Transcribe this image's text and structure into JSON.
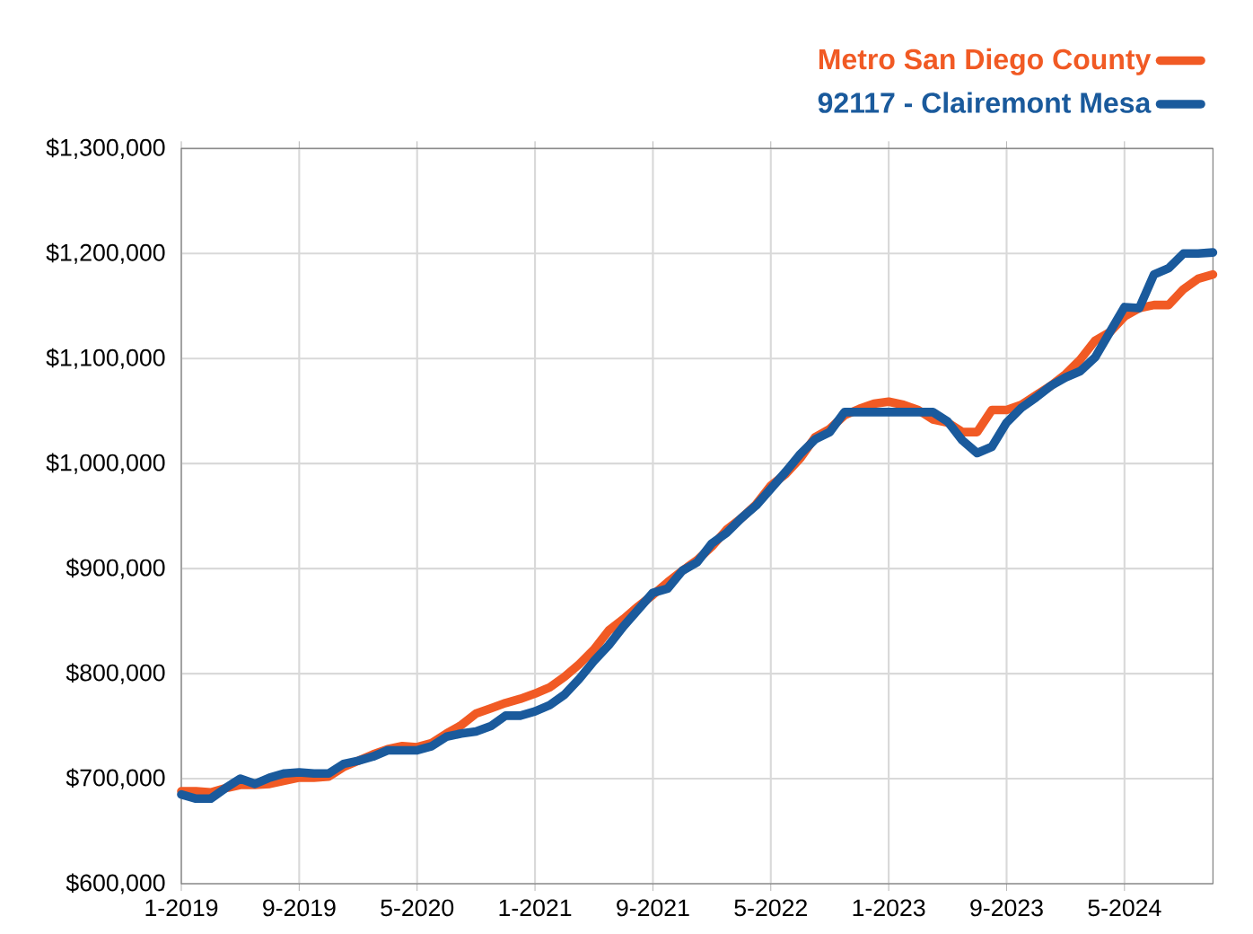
{
  "chart_data": {
    "type": "line",
    "x": [
      "2019-01",
      "2019-02",
      "2019-03",
      "2019-04",
      "2019-05",
      "2019-06",
      "2019-07",
      "2019-08",
      "2019-09",
      "2019-10",
      "2019-11",
      "2019-12",
      "2020-01",
      "2020-02",
      "2020-03",
      "2020-04",
      "2020-05",
      "2020-06",
      "2020-07",
      "2020-08",
      "2020-09",
      "2020-10",
      "2020-11",
      "2020-12",
      "2021-01",
      "2021-02",
      "2021-03",
      "2021-04",
      "2021-05",
      "2021-06",
      "2021-07",
      "2021-08",
      "2021-09",
      "2021-10",
      "2021-11",
      "2021-12",
      "2022-01",
      "2022-02",
      "2022-03",
      "2022-04",
      "2022-05",
      "2022-06",
      "2022-07",
      "2022-08",
      "2022-09",
      "2022-10",
      "2022-11",
      "2022-12",
      "2023-01",
      "2023-02",
      "2023-03",
      "2023-04",
      "2023-05",
      "2023-06",
      "2023-07",
      "2023-08",
      "2023-09",
      "2023-10",
      "2023-11",
      "2023-12",
      "2024-01",
      "2024-02",
      "2024-03",
      "2024-04",
      "2024-05",
      "2024-06",
      "2024-07",
      "2024-08",
      "2024-09",
      "2024-10",
      "2024-11"
    ],
    "series": [
      {
        "name": "Metro San Diego County",
        "color": "#f15a24",
        "values": [
          688000,
          688000,
          687000,
          691000,
          694000,
          694000,
          695000,
          698000,
          701000,
          701000,
          702000,
          711000,
          717000,
          723000,
          728000,
          731000,
          730000,
          734000,
          743000,
          751000,
          762000,
          767000,
          772000,
          776000,
          781000,
          787000,
          797000,
          809000,
          823000,
          841000,
          852000,
          864000,
          875000,
          887000,
          898000,
          908000,
          921000,
          937000,
          948000,
          961000,
          979000,
          990000,
          1005000,
          1025000,
          1033000,
          1046000,
          1052000,
          1057000,
          1059000,
          1056000,
          1051000,
          1042000,
          1039000,
          1030000,
          1030000,
          1051000,
          1051000,
          1056000,
          1065000,
          1074000,
          1085000,
          1099000,
          1117000,
          1125000,
          1140000,
          1148000,
          1151000,
          1151000,
          1166000,
          1176000,
          1180000
        ]
      },
      {
        "name": "92117 - Clairemont Mesa",
        "color": "#1a5a9c",
        "values": [
          685000,
          681000,
          681000,
          691000,
          700000,
          695000,
          701000,
          705000,
          706000,
          705000,
          705000,
          714000,
          717000,
          721000,
          727000,
          727000,
          727000,
          731000,
          740000,
          743000,
          745000,
          750000,
          760000,
          760000,
          764000,
          770000,
          780000,
          795000,
          812000,
          827000,
          845000,
          861000,
          877000,
          881000,
          898000,
          906000,
          924000,
          934000,
          948000,
          960000,
          976000,
          992000,
          1009000,
          1023000,
          1030000,
          1049000,
          1049000,
          1049000,
          1049000,
          1049000,
          1049000,
          1049000,
          1040000,
          1022000,
          1010000,
          1016000,
          1039000,
          1053000,
          1063000,
          1074000,
          1082000,
          1088000,
          1101000,
          1125000,
          1149000,
          1148000,
          1180000,
          1186000,
          1200000,
          1200000,
          1201000
        ]
      }
    ],
    "xlim": [
      "2019-01",
      "2024-11"
    ],
    "xticks": [
      {
        "value": "2019-01",
        "label": "1-2019"
      },
      {
        "value": "2019-09",
        "label": "9-2019"
      },
      {
        "value": "2020-05",
        "label": "5-2020"
      },
      {
        "value": "2021-01",
        "label": "1-2021"
      },
      {
        "value": "2021-09",
        "label": "9-2021"
      },
      {
        "value": "2022-05",
        "label": "5-2022"
      },
      {
        "value": "2023-01",
        "label": "1-2023"
      },
      {
        "value": "2023-09",
        "label": "9-2023"
      },
      {
        "value": "2024-05",
        "label": "5-2024"
      }
    ],
    "ylim": [
      600000,
      1300000
    ],
    "yticks": [
      {
        "value": 600000,
        "label": "$600,000"
      },
      {
        "value": 700000,
        "label": "$700,000"
      },
      {
        "value": 800000,
        "label": "$800,000"
      },
      {
        "value": 900000,
        "label": "$900,000"
      },
      {
        "value": 1000000,
        "label": "$1,000,000"
      },
      {
        "value": 1100000,
        "label": "$1,100,000"
      },
      {
        "value": 1200000,
        "label": "$1,200,000"
      },
      {
        "value": 1300000,
        "label": "$1,300,000"
      }
    ],
    "grid": true,
    "legend": "top right",
    "line_style": "solid",
    "marker": "none"
  }
}
